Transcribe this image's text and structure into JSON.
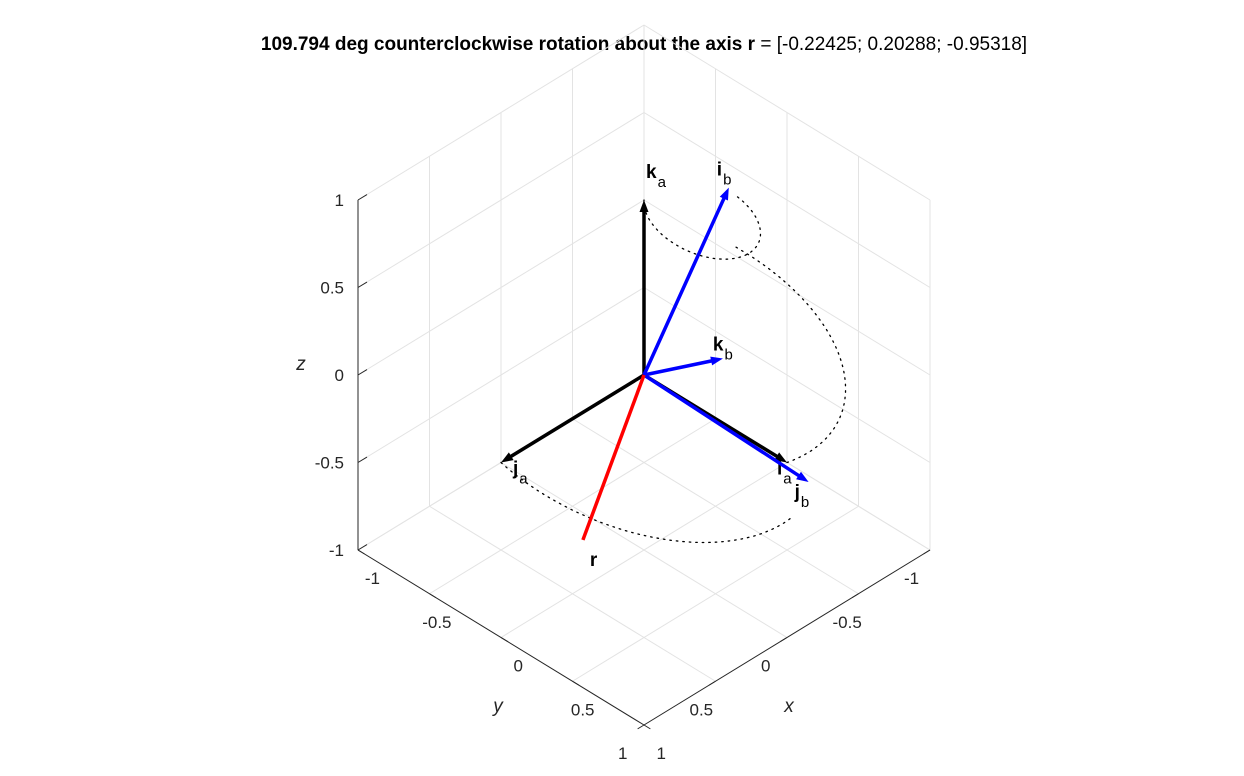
{
  "title": {
    "prefix": "109.794 deg counterclockwise rotation about the axis ",
    "axis_symbol": "r",
    "suffix": " = [-0.22425; 0.20288; -0.95318]"
  },
  "axes": {
    "xlabel": "x",
    "ylabel": "y",
    "zlabel": "z",
    "x_ticks": [
      "-1",
      "-0.5",
      "0",
      "0.5",
      "1"
    ],
    "y_ticks": [
      "-1",
      "-0.5",
      "0",
      "0.5",
      "1"
    ],
    "z_ticks": [
      "-1",
      "-0.5",
      "0",
      "0.5",
      "1"
    ]
  },
  "colors": {
    "frame_a": "#000000",
    "frame_b": "#0000ff",
    "axis_r": "#ff0000"
  },
  "vectors": [
    {
      "id": "ia",
      "letter": "i",
      "sub": "a",
      "color": "#000000",
      "vec": [
        1,
        0,
        0
      ]
    },
    {
      "id": "ja",
      "letter": "j",
      "sub": "a",
      "color": "#000000",
      "vec": [
        0,
        1,
        0
      ]
    },
    {
      "id": "ka",
      "letter": "k",
      "sub": "a",
      "color": "#000000",
      "vec": [
        0,
        0,
        1
      ]
    },
    {
      "id": "ib",
      "letter": "i",
      "sub": "b",
      "color": "#0000ff",
      "vec": [
        0.081,
        -0.512,
        0.855
      ]
    },
    {
      "id": "jb",
      "letter": "j",
      "sub": "b",
      "color": "#0000ff",
      "vec": [
        0.956,
        -0.195,
        -0.231
      ]
    },
    {
      "id": "kb",
      "letter": "k",
      "sub": "b",
      "color": "#0000ff",
      "vec": [
        -0.285,
        -0.837,
        -0.467
      ]
    },
    {
      "id": "r",
      "letter": "r",
      "sub": "",
      "color": "#ff0000",
      "vec": [
        -0.22425,
        0.20288,
        -0.95318
      ]
    }
  ]
}
